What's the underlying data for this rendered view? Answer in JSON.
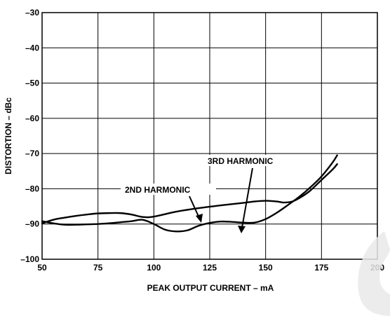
{
  "chart_data": {
    "type": "line",
    "title": "",
    "xlabel": "PEAK OUTPUT CURRENT – mA",
    "ylabel": "DISTORTION – dBc",
    "xlim": [
      50,
      200
    ],
    "ylim": [
      -100,
      -30
    ],
    "x_ticks": [
      50,
      75,
      100,
      125,
      150,
      175,
      200
    ],
    "y_ticks": [
      -30,
      -40,
      -50,
      -60,
      -70,
      -80,
      -90,
      -100
    ],
    "x_tick_labels": [
      "50",
      "75",
      "100",
      "125",
      "150",
      "175",
      "200"
    ],
    "y_tick_labels": [
      "–30",
      "–40",
      "–50",
      "–60",
      "–70",
      "–80",
      "–90",
      "–100"
    ],
    "grid": true,
    "series": [
      {
        "name": "2ND HARMONIC",
        "x": [
          50,
          55,
          60,
          65,
          70,
          75,
          80,
          85,
          90,
          95,
          100,
          110,
          120,
          130,
          140,
          145,
          150,
          155,
          158,
          162,
          166,
          170,
          175,
          180,
          182
        ],
        "y": [
          -89.8,
          -88.8,
          -88.2,
          -87.7,
          -87.3,
          -87.0,
          -86.9,
          -86.9,
          -87.3,
          -88.0,
          -87.9,
          -86.5,
          -85.5,
          -84.7,
          -84.0,
          -83.6,
          -83.4,
          -83.6,
          -83.9,
          -83.6,
          -82.3,
          -80.5,
          -77.5,
          -74.5,
          -73.0
        ]
      },
      {
        "name": "3RD HARMONIC",
        "x": [
          50,
          55,
          60,
          65,
          70,
          75,
          80,
          85,
          90,
          95,
          100,
          105,
          110,
          115,
          120,
          125,
          130,
          135,
          140,
          145,
          150,
          155,
          160,
          165,
          170,
          175,
          180,
          182
        ],
        "y": [
          -89.2,
          -89.8,
          -90.2,
          -90.2,
          -90.1,
          -90.0,
          -89.8,
          -89.5,
          -89.2,
          -88.8,
          -90.0,
          -91.6,
          -92.1,
          -91.8,
          -90.5,
          -89.7,
          -89.3,
          -89.4,
          -89.6,
          -89.6,
          -88.6,
          -86.8,
          -84.6,
          -82.3,
          -79.6,
          -76.5,
          -72.5,
          -70.5
        ]
      }
    ],
    "annotations": [
      {
        "text": "2ND HARMONIC"
      },
      {
        "text": "3RD HARMONIC"
      }
    ]
  }
}
